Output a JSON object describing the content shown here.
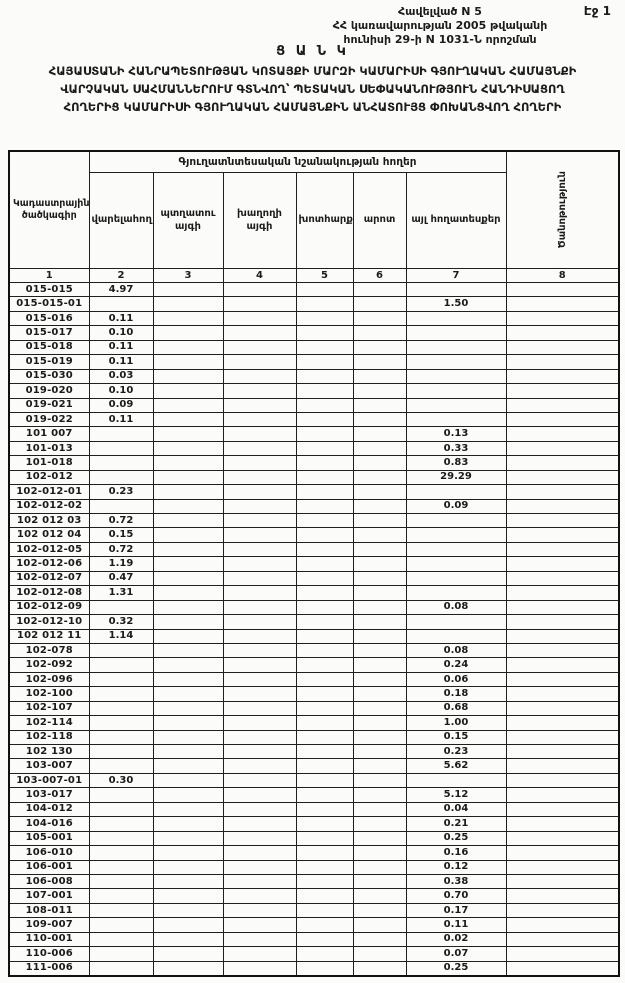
{
  "page": {
    "page_label": "Էջ 1"
  },
  "header": {
    "appendix_line1": "Հավելված N 5",
    "appendix_line2": "ՀՀ կառավարության 2005 թվականի",
    "appendix_line3": "հունիսի 29-ի N 1031-Ն որոշման",
    "list_title": "Ց Ա Ն Կ",
    "title_lines": [
      "ՀԱՅԱՍՏԱՆԻ ՀԱՆՐԱՊԵՏՈՒԹՅԱՆ ԿՈՏԱՅՔԻ ՄԱՐԶԻ ԿԱՄԱՐԻՍԻ ԳՅՈՒՂԱԿԱՆ ՀԱՄԱՅՆՔԻ",
      "ՎԱՐՉԱԿԱՆ ՍԱՀՄԱՆՆԵՐՈՒՄ ԳՏՆՎՈՂ՝ ՊԵՏԱԿԱՆ ՍԵՓԱԿԱՆՈՒԹՅՈՒՆ ՀԱՆԴԻՍԱՑՈՂ",
      "ՀՈՂԵՐԻՑ ԿԱՄԱՐԻՍԻ ԳՅՈՒՂԱԿԱՆ ՀԱՄԱՅՆՔԻՆ ԱՆՀԱՏՈՒՅՑ ՓՈԽԱՆՑՎՈՂ ՀՈՂԵՐԻ"
    ]
  },
  "table": {
    "col1_header": "Կադաստրային ծածկագիր",
    "group_header": "Գյուղատնտեսական նշանակության հողեր",
    "sub_headers": [
      "վարելահող",
      "պտղատու այգի",
      "խաղողի այգի",
      "խոտհարք",
      "արոտ",
      "այլ հողատեսքեր"
    ],
    "note_header": "Ծանոթություն",
    "column_numbers": [
      "1",
      "2",
      "3",
      "4",
      "5",
      "6",
      "7",
      "8"
    ],
    "rows": [
      [
        "015-015",
        "4.97",
        "",
        "",
        "",
        "",
        "",
        ""
      ],
      [
        "015-015-01",
        "",
        "",
        "",
        "",
        "",
        "1.50",
        ""
      ],
      [
        "015-016",
        "0.11",
        "",
        "",
        "",
        "",
        "",
        ""
      ],
      [
        "015-017",
        "0.10",
        "",
        "",
        "",
        "",
        "",
        ""
      ],
      [
        "015-018",
        "0.11",
        "",
        "",
        "",
        "",
        "",
        ""
      ],
      [
        "015-019",
        "0.11",
        "",
        "",
        "",
        "",
        "",
        ""
      ],
      [
        "015-030",
        "0.03",
        "",
        "",
        "",
        "",
        "",
        ""
      ],
      [
        "019-020",
        "0.10",
        "",
        "",
        "",
        "",
        "",
        ""
      ],
      [
        "019-021",
        "0.09",
        "",
        "",
        "",
        "",
        "",
        ""
      ],
      [
        "019-022",
        "0.11",
        "",
        "",
        "",
        "",
        "",
        ""
      ],
      [
        "101 007",
        "",
        "",
        "",
        "",
        "",
        "0.13",
        ""
      ],
      [
        "101-013",
        "",
        "",
        "",
        "",
        "",
        "0.33",
        ""
      ],
      [
        "101-018",
        "",
        "",
        "",
        "",
        "",
        "0.83",
        ""
      ],
      [
        "102-012",
        "",
        "",
        "",
        "",
        "",
        "29.29",
        ""
      ],
      [
        "102-012-01",
        "0.23",
        "",
        "",
        "",
        "",
        "",
        ""
      ],
      [
        "102-012-02",
        "",
        "",
        "",
        "",
        "",
        "0.09",
        ""
      ],
      [
        "102 012 03",
        "0.72",
        "",
        "",
        "",
        "",
        "",
        ""
      ],
      [
        "102 012 04",
        "0.15",
        "",
        "",
        "",
        "",
        "",
        ""
      ],
      [
        "102-012-05",
        "0.72",
        "",
        "",
        "",
        "",
        "",
        ""
      ],
      [
        "102-012-06",
        "1.19",
        "",
        "",
        "",
        "",
        "",
        ""
      ],
      [
        "102-012-07",
        "0.47",
        "",
        "",
        "",
        "",
        "",
        ""
      ],
      [
        "102-012-08",
        "1.31",
        "",
        "",
        "",
        "",
        "",
        ""
      ],
      [
        "102-012-09",
        "",
        "",
        "",
        "",
        "",
        "0.08",
        ""
      ],
      [
        "102-012-10",
        "0.32",
        "",
        "",
        "",
        "",
        "",
        ""
      ],
      [
        "102 012 11",
        "1.14",
        "",
        "",
        "",
        "",
        "",
        ""
      ],
      [
        "102-078",
        "",
        "",
        "",
        "",
        "",
        "0.08",
        ""
      ],
      [
        "102-092",
        "",
        "",
        "",
        "",
        "",
        "0.24",
        ""
      ],
      [
        "102-096",
        "",
        "",
        "",
        "",
        "",
        "0.06",
        ""
      ],
      [
        "102-100",
        "",
        "",
        "",
        "",
        "",
        "0.18",
        ""
      ],
      [
        "102-107",
        "",
        "",
        "",
        "",
        "",
        "0.68",
        ""
      ],
      [
        "102-114",
        "",
        "",
        "",
        "",
        "",
        "1.00",
        ""
      ],
      [
        "102-118",
        "",
        "",
        "",
        "",
        "",
        "0.15",
        ""
      ],
      [
        "102 130",
        "",
        "",
        "",
        "",
        "",
        "0.23",
        ""
      ],
      [
        "103-007",
        "",
        "",
        "",
        "",
        "",
        "5.62",
        ""
      ],
      [
        "103-007-01",
        "0.30",
        "",
        "",
        "",
        "",
        "",
        ""
      ],
      [
        "103-017",
        "",
        "",
        "",
        "",
        "",
        "5.12",
        ""
      ],
      [
        "104-012",
        "",
        "",
        "",
        "",
        "",
        "0.04",
        ""
      ],
      [
        "104-016",
        "",
        "",
        "",
        "",
        "",
        "0.21",
        ""
      ],
      [
        "105-001",
        "",
        "",
        "",
        "",
        "",
        "0.25",
        ""
      ],
      [
        "106-010",
        "",
        "",
        "",
        "",
        "",
        "0.16",
        ""
      ],
      [
        "106-001",
        "",
        "",
        "",
        "",
        "",
        "0.12",
        ""
      ],
      [
        "106-008",
        "",
        "",
        "",
        "",
        "",
        "0.38",
        ""
      ],
      [
        "107-001",
        "",
        "",
        "",
        "",
        "",
        "0.70",
        ""
      ],
      [
        "108-011",
        "",
        "",
        "",
        "",
        "",
        "0.17",
        ""
      ],
      [
        "109-007",
        "",
        "",
        "",
        "",
        "",
        "0.11",
        ""
      ],
      [
        "110-001",
        "",
        "",
        "",
        "",
        "",
        "0.02",
        ""
      ],
      [
        "110-006",
        "",
        "",
        "",
        "",
        "",
        "0.07",
        ""
      ],
      [
        "111-006",
        "",
        "",
        "",
        "",
        "",
        "0.25",
        ""
      ]
    ]
  }
}
